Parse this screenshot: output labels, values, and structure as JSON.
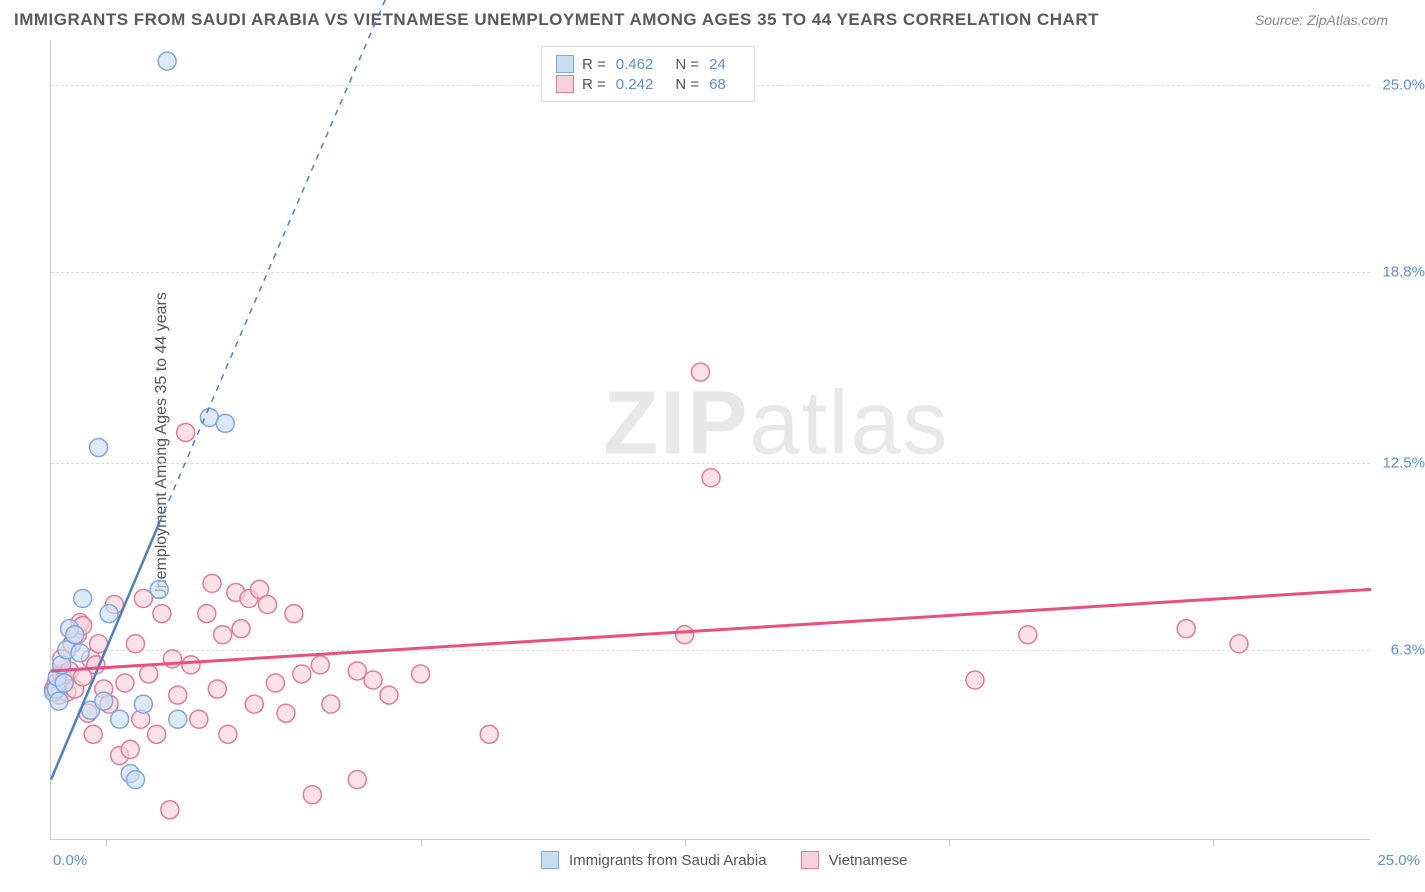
{
  "title": "IMMIGRANTS FROM SAUDI ARABIA VS VIETNAMESE UNEMPLOYMENT AMONG AGES 35 TO 44 YEARS CORRELATION CHART",
  "source": "Source: ZipAtlas.com",
  "y_axis_label": "Unemployment Among Ages 35 to 44 years",
  "watermark_bold": "ZIP",
  "watermark_light": "atlas",
  "chart": {
    "type": "scatter",
    "xlim": [
      0,
      25
    ],
    "ylim": [
      0,
      26.5
    ],
    "x_ticks": [
      0,
      25
    ],
    "x_tick_labels": [
      "0.0%",
      "25.0%"
    ],
    "y_ticks": [
      6.3,
      12.5,
      18.8,
      25.0
    ],
    "y_tick_labels": [
      "6.3%",
      "12.5%",
      "18.8%",
      "25.0%"
    ],
    "x_minor_ticks": [
      1.05,
      7.0,
      12.0,
      17.0,
      22.0
    ],
    "background_color": "#ffffff",
    "grid_color": "#dddddd",
    "axis_color": "#cccccc",
    "series": [
      {
        "name": "Immigrants from Saudi Arabia",
        "color_fill": "#c9ddf3",
        "color_stroke": "#7fa9dd",
        "marker_radius": 9,
        "R": "0.462",
        "N": "24",
        "trend": {
          "x1": 0,
          "y1": 2.0,
          "x2": 2.05,
          "y2": 10.5,
          "solid_x_max": 2.05,
          "dash_to_x": 8.1,
          "dash_to_y": 35,
          "stroke": "#4a80c9",
          "width": 2.5
        },
        "points": [
          [
            0.05,
            4.9
          ],
          [
            0.1,
            5.0
          ],
          [
            0.12,
            5.4
          ],
          [
            0.15,
            4.6
          ],
          [
            0.2,
            5.8
          ],
          [
            0.25,
            5.2
          ],
          [
            0.3,
            6.3
          ],
          [
            0.35,
            7.0
          ],
          [
            0.45,
            6.8
          ],
          [
            0.55,
            6.2
          ],
          [
            0.6,
            8.0
          ],
          [
            0.75,
            4.3
          ],
          [
            0.9,
            13.0
          ],
          [
            1.1,
            7.5
          ],
          [
            1.3,
            4.0
          ],
          [
            1.5,
            2.2
          ],
          [
            1.6,
            2.0
          ],
          [
            1.75,
            4.5
          ],
          [
            2.05,
            8.3
          ],
          [
            2.2,
            25.8
          ],
          [
            2.4,
            4.0
          ],
          [
            3.0,
            14.0
          ],
          [
            3.3,
            13.8
          ],
          [
            1.0,
            4.6
          ]
        ]
      },
      {
        "name": "Vietnamese",
        "color_fill": "#f8d2da",
        "color_stroke": "#e77a9a",
        "marker_radius": 9,
        "R": "0.242",
        "N": "68",
        "trend": {
          "x1": 0,
          "y1": 5.6,
          "x2": 25,
          "y2": 8.3,
          "stroke": "#e94f80",
          "width": 3
        },
        "points": [
          [
            0.05,
            5.0
          ],
          [
            0.1,
            5.2
          ],
          [
            0.15,
            4.8
          ],
          [
            0.2,
            5.5
          ],
          [
            0.2,
            6.0
          ],
          [
            0.25,
            5.3
          ],
          [
            0.3,
            4.9
          ],
          [
            0.35,
            5.6
          ],
          [
            0.4,
            6.5
          ],
          [
            0.45,
            5.0
          ],
          [
            0.5,
            6.8
          ],
          [
            0.55,
            7.2
          ],
          [
            0.6,
            5.4
          ],
          [
            0.7,
            4.2
          ],
          [
            0.75,
            6.0
          ],
          [
            0.8,
            3.5
          ],
          [
            0.85,
            5.8
          ],
          [
            0.9,
            6.5
          ],
          [
            1.0,
            5.0
          ],
          [
            1.1,
            4.5
          ],
          [
            1.2,
            7.8
          ],
          [
            1.3,
            2.8
          ],
          [
            1.4,
            5.2
          ],
          [
            1.5,
            3.0
          ],
          [
            1.6,
            6.5
          ],
          [
            1.7,
            4.0
          ],
          [
            1.75,
            8.0
          ],
          [
            1.85,
            5.5
          ],
          [
            2.0,
            3.5
          ],
          [
            2.1,
            7.5
          ],
          [
            2.25,
            1.0
          ],
          [
            2.3,
            6.0
          ],
          [
            2.4,
            4.8
          ],
          [
            2.55,
            13.5
          ],
          [
            2.65,
            5.8
          ],
          [
            2.8,
            4.0
          ],
          [
            2.95,
            7.5
          ],
          [
            3.05,
            8.5
          ],
          [
            3.15,
            5.0
          ],
          [
            3.25,
            6.8
          ],
          [
            3.35,
            3.5
          ],
          [
            3.5,
            8.2
          ],
          [
            3.6,
            7.0
          ],
          [
            3.75,
            8.0
          ],
          [
            3.85,
            4.5
          ],
          [
            3.95,
            8.3
          ],
          [
            4.1,
            7.8
          ],
          [
            4.25,
            5.2
          ],
          [
            4.45,
            4.2
          ],
          [
            4.6,
            7.5
          ],
          [
            4.75,
            5.5
          ],
          [
            4.95,
            1.5
          ],
          [
            5.1,
            5.8
          ],
          [
            5.3,
            4.5
          ],
          [
            5.8,
            2.0
          ],
          [
            5.8,
            5.6
          ],
          [
            6.1,
            5.3
          ],
          [
            6.4,
            4.8
          ],
          [
            7.0,
            5.5
          ],
          [
            8.3,
            3.5
          ],
          [
            12.0,
            6.8
          ],
          [
            12.3,
            15.5
          ],
          [
            12.5,
            12.0
          ],
          [
            17.5,
            5.3
          ],
          [
            18.5,
            6.8
          ],
          [
            21.5,
            7.0
          ],
          [
            22.5,
            6.5
          ],
          [
            0.6,
            7.1
          ]
        ]
      }
    ],
    "legend_bottom": [
      {
        "label": "Immigrants from Saudi Arabia",
        "fill": "#c9ddf3",
        "stroke": "#7fa9dd"
      },
      {
        "label": "Vietnamese",
        "fill": "#f8d2da",
        "stroke": "#e77a9a"
      }
    ]
  }
}
